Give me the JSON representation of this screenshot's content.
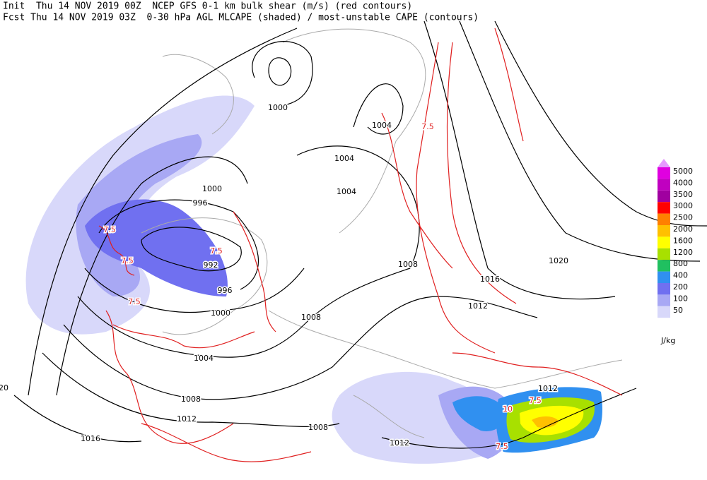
{
  "header": {
    "line1": "Init  Thu 14 NOV 2019 00Z  NCEP GFS 0-1 km bulk shear (m/s) (red contours)",
    "line2": "Fcst Thu 14 NOV 2019 03Z  0-30 hPa AGL MLCAPE (shaded) / most-unstable CAPE (contours)"
  },
  "isobar_labels": [
    "1000",
    "1000",
    "996",
    "992",
    "996",
    "1000",
    "1004",
    "1008",
    "1012",
    "1016",
    "1004",
    "1004",
    "1004",
    "1008",
    "1008",
    "1012",
    "1016",
    "1020",
    "1012",
    "1008",
    "1012",
    "20"
  ],
  "shear_labels": [
    "7.5",
    "7.5",
    "7.5",
    "7.5",
    "10",
    "7.5",
    "7.5",
    "7.5"
  ],
  "legend": {
    "labels": [
      "5000",
      "4000",
      "3500",
      "3000",
      "2500",
      "2000",
      "1600",
      "1200",
      "800",
      "400",
      "200",
      "100",
      "50"
    ],
    "colors": [
      "#e000e0",
      "#c000c0",
      "#a000a0",
      "#ff0000",
      "#ff8000",
      "#ffc000",
      "#ffff00",
      "#a8e000",
      "#20c060",
      "#3090f0",
      "#7070f0",
      "#a8a8f4",
      "#d8d8fa"
    ],
    "top_color": "#e699ff",
    "unit": "J/kg"
  }
}
